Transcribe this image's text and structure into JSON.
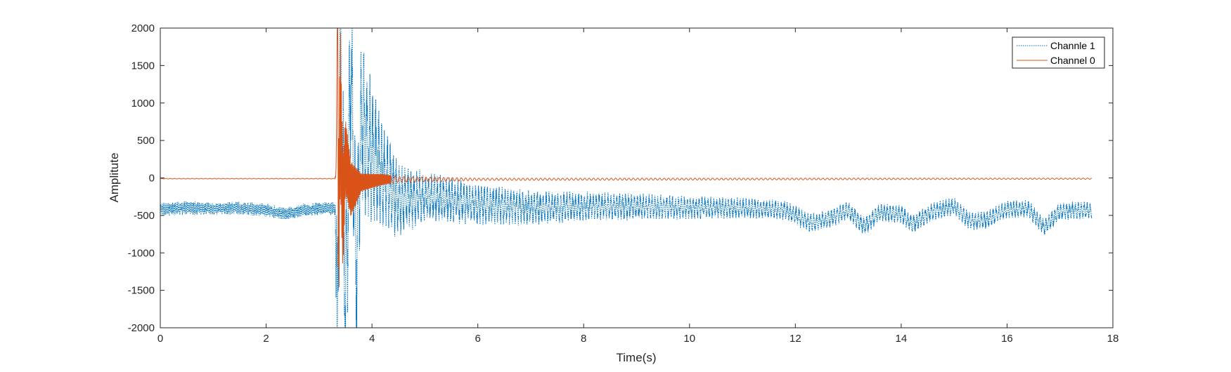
{
  "chart_data": {
    "type": "line",
    "xlabel": "Time(s)",
    "ylabel": "Amplitute",
    "xlim": [
      0,
      18
    ],
    "ylim": [
      -2000,
      2000
    ],
    "xticks": [
      0,
      2,
      4,
      6,
      8,
      10,
      12,
      14,
      16,
      18
    ],
    "yticks": [
      -2000,
      -1500,
      -1000,
      -500,
      0,
      500,
      1000,
      1500,
      2000
    ],
    "grid": false,
    "box": true,
    "legend_position": "top-right",
    "data_end_time": 17.6,
    "event_time": 3.35,
    "series": [
      {
        "name": "Channle 1",
        "color": "#0072BD",
        "line_style": "dotted",
        "baseline_points": [
          [
            0,
            -420
          ],
          [
            0.5,
            -400
          ],
          [
            1.0,
            -410
          ],
          [
            1.5,
            -400
          ],
          [
            2.0,
            -430
          ],
          [
            2.35,
            -480
          ],
          [
            2.6,
            -440
          ],
          [
            3.0,
            -410
          ],
          [
            3.3,
            -410
          ],
          [
            3.35,
            -1900
          ],
          [
            3.4,
            1900
          ],
          [
            3.5,
            -1800
          ],
          [
            3.6,
            1600
          ],
          [
            3.7,
            -1200
          ],
          [
            3.8,
            800
          ],
          [
            4.0,
            300
          ],
          [
            4.5,
            -300
          ],
          [
            5.0,
            -250
          ],
          [
            6.0,
            -350
          ],
          [
            7.0,
            -400
          ],
          [
            8.0,
            -380
          ],
          [
            9.0,
            -380
          ],
          [
            10.0,
            -400
          ],
          [
            11.0,
            -400
          ],
          [
            11.8,
            -430
          ],
          [
            12.3,
            -600
          ],
          [
            12.6,
            -560
          ],
          [
            13.0,
            -430
          ],
          [
            13.3,
            -650
          ],
          [
            13.6,
            -460
          ],
          [
            14.0,
            -480
          ],
          [
            14.2,
            -620
          ],
          [
            14.6,
            -450
          ],
          [
            15.0,
            -380
          ],
          [
            15.3,
            -580
          ],
          [
            15.6,
            -560
          ],
          [
            16.0,
            -420
          ],
          [
            16.4,
            -410
          ],
          [
            16.7,
            -660
          ],
          [
            17.0,
            -450
          ],
          [
            17.6,
            -430
          ]
        ],
        "oscillation_amplitude": [
          [
            0,
            90
          ],
          [
            3.3,
            90
          ],
          [
            3.35,
            1500
          ],
          [
            3.6,
            1400
          ],
          [
            4.0,
            1000
          ],
          [
            4.5,
            500
          ],
          [
            5.0,
            350
          ],
          [
            6.0,
            280
          ],
          [
            8.0,
            200
          ],
          [
            10.0,
            160
          ],
          [
            12.0,
            130
          ],
          [
            17.6,
            120
          ]
        ]
      },
      {
        "name": "Channel 0",
        "color": "#D95319",
        "line_style": "solid",
        "baseline_points": [
          [
            0,
            -10
          ],
          [
            3.3,
            -10
          ],
          [
            3.35,
            1480
          ],
          [
            3.37,
            -780
          ],
          [
            3.4,
            1000
          ],
          [
            3.45,
            -500
          ],
          [
            3.5,
            300
          ],
          [
            3.6,
            -150
          ],
          [
            3.8,
            -60
          ],
          [
            4.2,
            -20
          ],
          [
            17.6,
            -10
          ]
        ],
        "oscillation_amplitude": [
          [
            0,
            4
          ],
          [
            3.3,
            4
          ],
          [
            3.35,
            1400
          ],
          [
            3.5,
            500
          ],
          [
            3.8,
            120
          ],
          [
            4.5,
            40
          ],
          [
            6.0,
            15
          ],
          [
            17.6,
            8
          ]
        ]
      }
    ]
  }
}
